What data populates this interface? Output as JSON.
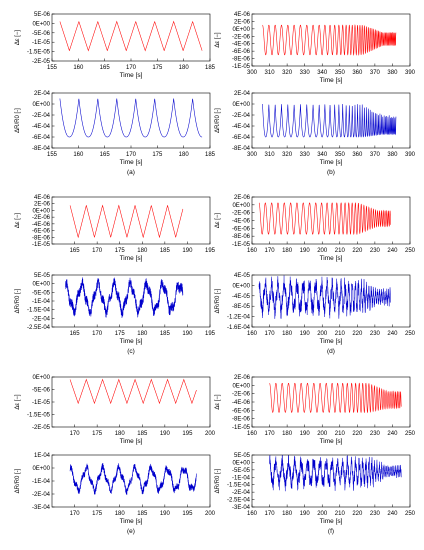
{
  "chart_data": [
    {
      "panel": "a",
      "type": "line",
      "color": "#ff0000",
      "xlabel": "Time [s]",
      "ylabel": "Δε [−]",
      "xlim": [
        155,
        185
      ],
      "ylim": [
        -2e-05,
        5e-06
      ],
      "xticks": [
        "155",
        "160",
        "165",
        "170",
        "175",
        "180",
        "185"
      ],
      "yticks": [
        "5E-06",
        "0E+00",
        "-5E-06",
        "-1E-05",
        "-1.5E-05",
        "-2E-05"
      ],
      "signal": {
        "shape": "triangle",
        "t0": 156.5,
        "t1": 183.5,
        "period": 3.6,
        "min": -1.45e-05,
        "max": 1e-06,
        "freq_end_ratio": 1.0
      }
    },
    {
      "panel": "a",
      "type": "line",
      "color": "#0000cc",
      "xlabel": "Time [s]",
      "ylabel": "ΔR/R0 [-]",
      "xlim": [
        155,
        185
      ],
      "ylim": [
        -0.0008,
        0.0002
      ],
      "xticks": [
        "155",
        "160",
        "165",
        "170",
        "175",
        "180",
        "185"
      ],
      "yticks": [
        "2E-04",
        "0E+00",
        "-2E-04",
        "-4E-04",
        "-6E-04",
        "-8E-04"
      ],
      "caption": "(a)",
      "signal": {
        "shape": "cusp",
        "t0": 156.5,
        "t1": 183.5,
        "period": 3.6,
        "min": -0.0006,
        "max": 0.0001,
        "freq_end_ratio": 1.0
      }
    },
    {
      "panel": "b",
      "type": "line",
      "color": "#ff0000",
      "xlabel": "Time [s]",
      "ylabel": "Δε [−]",
      "xlim": [
        300,
        390
      ],
      "ylim": [
        -1e-05,
        4e-06
      ],
      "xticks": [
        "300",
        "310",
        "320",
        "330",
        "340",
        "350",
        "360",
        "370",
        "380",
        "390"
      ],
      "yticks": [
        "4E-06",
        "2E-06",
        "0E+00",
        "-2E-06",
        "-4E-06",
        "-6E-06",
        "-8E-06",
        "-1E-05"
      ],
      "signal": {
        "shape": "sine",
        "t0": 306,
        "t1": 382,
        "period": 3.6,
        "min": -7e-06,
        "max": 1e-06,
        "freq_end_ratio": 6.0,
        "end_min": -4.5e-06,
        "end_max": -1e-06
      }
    },
    {
      "panel": "b",
      "type": "line",
      "color": "#0000cc",
      "xlabel": "Time [s]",
      "ylabel": "ΔR/R0 [-]",
      "xlim": [
        300,
        390
      ],
      "ylim": [
        -0.0008,
        0.0002
      ],
      "xticks": [
        "300",
        "310",
        "320",
        "330",
        "340",
        "350",
        "360",
        "370",
        "380",
        "390"
      ],
      "yticks": [
        "2E-04",
        "0E+00",
        "-2E-04",
        "-4E-04",
        "-6E-04",
        "-8E-04"
      ],
      "caption": "(b)",
      "signal": {
        "shape": "cusp",
        "t0": 306,
        "t1": 382,
        "period": 3.6,
        "min": -0.0006,
        "max": 0.0,
        "freq_end_ratio": 6.0,
        "end_min": -0.00055,
        "end_max": -0.0002
      }
    },
    {
      "panel": "c",
      "type": "line",
      "color": "#ff0000",
      "xlabel": "Time [s]",
      "ylabel": "Δε [−]",
      "xlim": [
        160,
        195
      ],
      "ylim": [
        -1e-05,
        4e-06
      ],
      "xticks": [
        "165",
        "170",
        "175",
        "180",
        "185",
        "190",
        "195"
      ],
      "yticks": [
        "4E-06",
        "2E-06",
        "0E+00",
        "-2E-06",
        "-4E-06",
        "-6E-06",
        "-8E-06",
        "-1E-05"
      ],
      "signal": {
        "shape": "triangle",
        "t0": 164,
        "t1": 189,
        "period": 3.6,
        "min": -8e-06,
        "max": 1.5e-06,
        "freq_end_ratio": 1.0
      }
    },
    {
      "panel": "c",
      "type": "line",
      "color": "#0000cc",
      "xlabel": "Time [s]",
      "ylabel": "ΔR/R0 [-]",
      "xlim": [
        160,
        195
      ],
      "ylim": [
        -0.00025,
        5e-05
      ],
      "xticks": [
        "165",
        "170",
        "175",
        "180",
        "185",
        "190",
        "195"
      ],
      "yticks": [
        "5E-05",
        "0E+00",
        "-5E-05",
        "-1E-04",
        "-1.5E-04",
        "-2E-04",
        "-2.5E-04"
      ],
      "caption": "(c)",
      "signal": {
        "shape": "noisy",
        "t0": 163,
        "t1": 189,
        "period": 3.6,
        "min": -0.00016,
        "max": 0.0,
        "freq_end_ratio": 1.0,
        "noise": 0.35
      }
    },
    {
      "panel": "d",
      "type": "line",
      "color": "#ff0000",
      "xlabel": "Time [s]",
      "ylabel": "Δε [−]",
      "xlim": [
        160,
        250
      ],
      "ylim": [
        -1e-05,
        2e-06
      ],
      "xticks": [
        "160",
        "170",
        "180",
        "190",
        "200",
        "210",
        "220",
        "230",
        "240",
        "250"
      ],
      "yticks": [
        "2E-06",
        "0E+00",
        "-2E-06",
        "-4E-06",
        "-6E-06",
        "-8E-06",
        "-1E-05"
      ],
      "signal": {
        "shape": "sine",
        "t0": 164,
        "t1": 239,
        "period": 3.6,
        "min": -7.5e-06,
        "max": 5e-07,
        "freq_end_ratio": 4.0,
        "end_min": -5.5e-06,
        "end_max": -1.5e-06
      }
    },
    {
      "panel": "d",
      "type": "line",
      "color": "#0000cc",
      "xlabel": "Time [s]",
      "ylabel": "ΔR/R0 [-]",
      "xlim": [
        160,
        250
      ],
      "ylim": [
        -0.00016,
        4e-05
      ],
      "xticks": [
        "160",
        "170",
        "180",
        "190",
        "200",
        "210",
        "220",
        "230",
        "240",
        "250"
      ],
      "yticks": [
        "4E-05",
        "0E+00",
        "-4E-05",
        "-8E-05",
        "-1.2E-04",
        "-1.6E-04"
      ],
      "caption": "(d)",
      "signal": {
        "shape": "noisy",
        "t0": 164,
        "t1": 239,
        "period": 3.6,
        "min": -0.0001,
        "max": 1e-05,
        "freq_end_ratio": 4.0,
        "noise": 0.45,
        "end_min": -7e-05,
        "end_max": -2e-05
      }
    },
    {
      "panel": "e",
      "type": "line",
      "color": "#ff0000",
      "xlabel": "Time [s]",
      "ylabel": "Δε [−]",
      "xlim": [
        165,
        200
      ],
      "ylim": [
        -2e-05,
        0.0
      ],
      "xticks": [
        "170",
        "175",
        "180",
        "185",
        "190",
        "195",
        "200"
      ],
      "yticks": [
        "0E+00",
        "-5E-06",
        "-1E-05",
        "-1.5E-05",
        "-2E-05"
      ],
      "signal": {
        "shape": "triangle",
        "t0": 169,
        "t1": 197,
        "period": 3.6,
        "min": -1.05e-05,
        "max": -1e-06,
        "freq_end_ratio": 1.0
      }
    },
    {
      "panel": "e",
      "type": "line",
      "color": "#0000cc",
      "xlabel": "Time [s]",
      "ylabel": "ΔR/R0 [-]",
      "xlim": [
        165,
        200
      ],
      "ylim": [
        -0.0003,
        0.0001
      ],
      "xticks": [
        "170",
        "175",
        "180",
        "185",
        "190",
        "195",
        "200"
      ],
      "yticks": [
        "1E-04",
        "0E+00",
        "-1E-04",
        "-2E-04",
        "-3E-04"
      ],
      "caption": "(e)",
      "signal": {
        "shape": "noisy",
        "t0": 169,
        "t1": 197,
        "period": 3.6,
        "min": -0.00017,
        "max": 0.0,
        "freq_end_ratio": 1.0,
        "noise": 0.3
      }
    },
    {
      "panel": "f",
      "type": "line",
      "color": "#ff0000",
      "xlabel": "Time [s]",
      "ylabel": "Δε [−]",
      "xlim": [
        160,
        250
      ],
      "ylim": [
        -1e-05,
        2e-06
      ],
      "xticks": [
        "160",
        "170",
        "180",
        "190",
        "200",
        "210",
        "220",
        "230",
        "240",
        "250"
      ],
      "yticks": [
        "2E-06",
        "0E+00",
        "-2E-06",
        "-4E-06",
        "-6E-06",
        "-8E-06",
        "-1E-05"
      ],
      "signal": {
        "shape": "sine",
        "t0": 170,
        "t1": 245,
        "period": 3.6,
        "min": -6.5e-06,
        "max": 5e-07,
        "freq_end_ratio": 4.0,
        "end_min": -5.5e-06,
        "end_max": -1.5e-06
      }
    },
    {
      "panel": "f",
      "type": "line",
      "color": "#0000cc",
      "xlabel": "Time [s]",
      "ylabel": "ΔR/R0 [-]",
      "xlim": [
        160,
        250
      ],
      "ylim": [
        -0.0003,
        5e-05
      ],
      "xticks": [
        "160",
        "170",
        "180",
        "190",
        "200",
        "210",
        "220",
        "230",
        "240",
        "250"
      ],
      "yticks": [
        "5E-05",
        "0E+00",
        "-5E-05",
        "-1E-04",
        "-1.5E-04",
        "-2E-04",
        "-2.5E-04",
        "-3E-04"
      ],
      "caption": "(f)",
      "signal": {
        "shape": "noisy",
        "t0": 170,
        "t1": 245,
        "period": 3.6,
        "min": -0.00015,
        "max": 1e-05,
        "freq_end_ratio": 4.0,
        "noise": 0.5,
        "end_min": -9e-05,
        "end_max": -3e-05
      }
    }
  ]
}
